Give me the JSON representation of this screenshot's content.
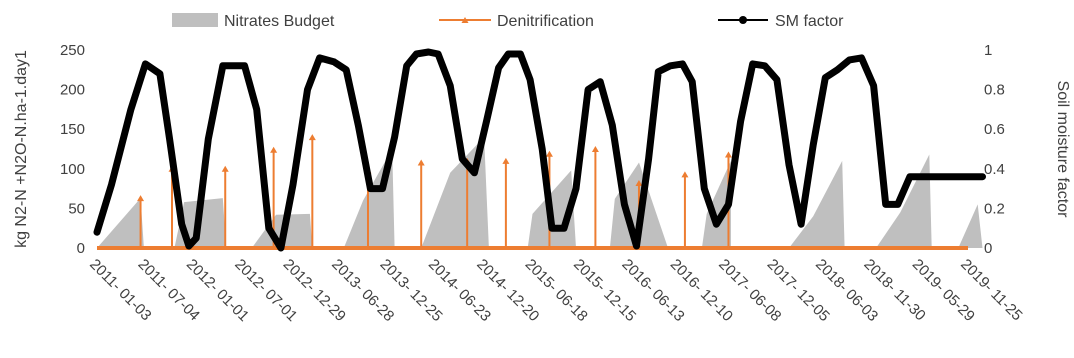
{
  "chart_data": {
    "type": "area",
    "x_categories": [
      "2011- 01-03",
      "2011- 07-04",
      "2012- 01-01",
      "2012- 07-01",
      "2012- 12-29",
      "2013- 06-28",
      "2013- 12-25",
      "2014- 06-23",
      "2014- 12-20",
      "2015- 06-18",
      "2015- 12-15",
      "2016- 06-13",
      "2016- 12-10",
      "2017- 06-08",
      "2017- 12-05",
      "2018- 06-03",
      "2018- 11-30",
      "2019- 05-29",
      "2019- 11-25"
    ],
    "ylabel_left": "kg N2-N +N2O-N.ha-1.day1",
    "ylabel_right": "Soil moisture factor",
    "yticks_left": [
      "0",
      "50",
      "100",
      "150",
      "200",
      "250"
    ],
    "yticks_right": [
      "0",
      "0.2",
      "0.4",
      "0.6",
      "0.8",
      "1"
    ],
    "ylim_left": [
      0,
      250
    ],
    "ylim_right": [
      0,
      1
    ],
    "legend_position": "top",
    "series": [
      {
        "name": "Nitrates Budget",
        "type": "area",
        "color": "#bfbfbf",
        "axis": "left",
        "x": [
          0.0,
          0.9,
          0.97,
          1.6,
          1.8,
          2.6,
          2.67,
          3.2,
          3.7,
          4.4,
          4.45,
          5.1,
          5.5,
          6.1,
          6.15,
          6.7,
          7.3,
          8.0,
          8.1,
          8.9,
          9.0,
          9.8,
          9.9,
          10.6,
          10.7,
          11.2,
          11.8,
          12.5,
          12.6,
          13.1
        ],
        "y": [
          0,
          63,
          0,
          0,
          58,
          63,
          0,
          0,
          42,
          43,
          0,
          0,
          60,
          125,
          0,
          0,
          95,
          140,
          0,
          0,
          43,
          98,
          0,
          0,
          62,
          108,
          0,
          0,
          43,
          110
        ]
      },
      {
        "name": "Nitrates Budget",
        "type": "area",
        "color": "#bfbfbf",
        "axis": "left",
        "x": [
          13.2,
          13.65,
          13.7,
          14.3,
          14.8,
          15.4,
          15.45,
          16.1,
          16.6,
          17.2,
          17.25,
          17.8,
          18.2,
          18.3
        ],
        "y": [
          0,
          0,
          0,
          0,
          40,
          110,
          0,
          0,
          45,
          118,
          0,
          0,
          55,
          0
        ]
      },
      {
        "name": "Denitrification",
        "type": "line",
        "color": "#ed7d31",
        "axis": "left",
        "x": [
          0.9,
          1.55,
          2.65,
          3.65,
          4.45,
          5.6,
          6.7,
          7.65,
          8.45,
          9.35,
          10.3,
          11.2,
          12.15,
          13.05
        ],
        "y": [
          63,
          100,
          100,
          124,
          140,
          98,
          108,
          110,
          110,
          119,
          125,
          82,
          93,
          118
        ]
      },
      {
        "name": "SM factor",
        "type": "line",
        "color": "#000000",
        "axis": "right",
        "x": [
          0.0,
          0.3,
          0.7,
          1.0,
          1.3,
          1.5,
          1.75,
          1.9,
          2.05,
          2.3,
          2.6,
          2.8,
          3.05,
          3.3,
          3.55,
          3.8,
          4.05,
          4.35,
          4.6,
          4.9,
          5.15,
          5.4,
          5.65,
          5.9,
          6.15,
          6.4,
          6.6,
          6.85,
          7.05,
          7.3,
          7.55,
          7.8,
          8.05,
          8.3,
          8.5,
          8.75,
          8.95,
          9.2,
          9.4,
          9.65,
          9.9,
          10.15,
          10.4,
          10.65,
          10.9,
          11.15,
          11.4,
          11.6,
          11.85,
          12.1,
          12.3,
          12.55,
          12.8,
          13.05,
          13.3,
          13.55,
          13.8,
          14.05,
          14.3,
          14.55,
          14.8,
          15.05,
          15.3,
          15.55,
          15.8,
          16.05,
          16.3,
          16.55,
          16.8,
          17.05,
          17.3,
          17.55,
          17.8,
          18.05,
          18.3
        ],
        "y": [
          0.08,
          0.32,
          0.7,
          0.93,
          0.88,
          0.55,
          0.12,
          0.01,
          0.05,
          0.55,
          0.92,
          0.92,
          0.92,
          0.7,
          0.1,
          0.0,
          0.32,
          0.8,
          0.96,
          0.94,
          0.9,
          0.62,
          0.3,
          0.3,
          0.56,
          0.92,
          0.98,
          0.99,
          0.98,
          0.82,
          0.45,
          0.38,
          0.64,
          0.91,
          0.98,
          0.98,
          0.85,
          0.5,
          0.1,
          0.1,
          0.3,
          0.8,
          0.84,
          0.62,
          0.22,
          0.01,
          0.45,
          0.89,
          0.92,
          0.93,
          0.84,
          0.3,
          0.12,
          0.22,
          0.64,
          0.93,
          0.92,
          0.85,
          0.42,
          0.12,
          0.52,
          0.86,
          0.9,
          0.95,
          0.96,
          0.82,
          0.22,
          0.22,
          0.36,
          0.36,
          0.36,
          0.36,
          0.36,
          0.36,
          0.36
        ]
      }
    ]
  }
}
